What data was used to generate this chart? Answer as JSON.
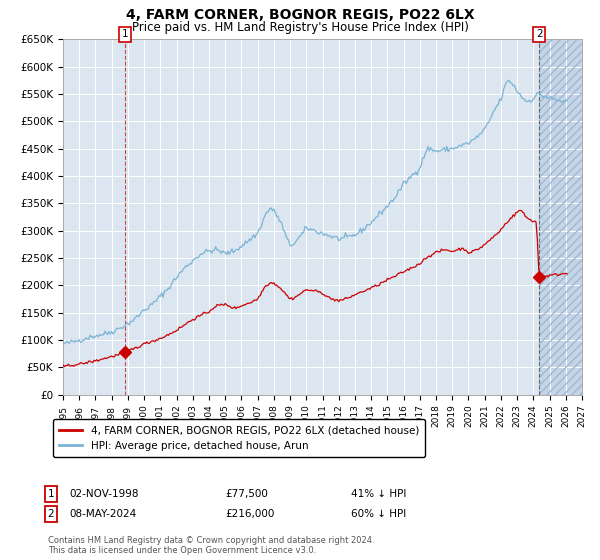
{
  "title": "4, FARM CORNER, BOGNOR REGIS, PO22 6LX",
  "subtitle": "Price paid vs. HM Land Registry's House Price Index (HPI)",
  "ylim": [
    0,
    650000
  ],
  "yticks": [
    0,
    50000,
    100000,
    150000,
    200000,
    250000,
    300000,
    350000,
    400000,
    450000,
    500000,
    550000,
    600000,
    650000
  ],
  "ytick_labels": [
    "£0",
    "£50K",
    "£100K",
    "£150K",
    "£200K",
    "£250K",
    "£300K",
    "£350K",
    "£400K",
    "£450K",
    "£500K",
    "£550K",
    "£600K",
    "£650K"
  ],
  "xlim_start": 1995.0,
  "xlim_end": 2027.0,
  "plot_bg_color": "#dce6f1",
  "hatch_fill_color": "#c5d5e8",
  "hpi_color": "#7ab3d4",
  "price_color": "#cc0000",
  "vline1_x": 1998.838,
  "vline2_x": 2024.354,
  "marker1_x": 1998.838,
  "marker1_y": 77500,
  "marker2_x": 2024.354,
  "marker2_y": 216000,
  "legend_label1": "4, FARM CORNER, BOGNOR REGIS, PO22 6LX (detached house)",
  "legend_label2": "HPI: Average price, detached house, Arun",
  "note1_date": "02-NOV-1998",
  "note1_price": "£77,500",
  "note1_hpi": "41% ↓ HPI",
  "note2_date": "08-MAY-2024",
  "note2_price": "£216,000",
  "note2_hpi": "60% ↓ HPI",
  "footer": "Contains HM Land Registry data © Crown copyright and database right 2024.\nThis data is licensed under the Open Government Licence v3.0."
}
